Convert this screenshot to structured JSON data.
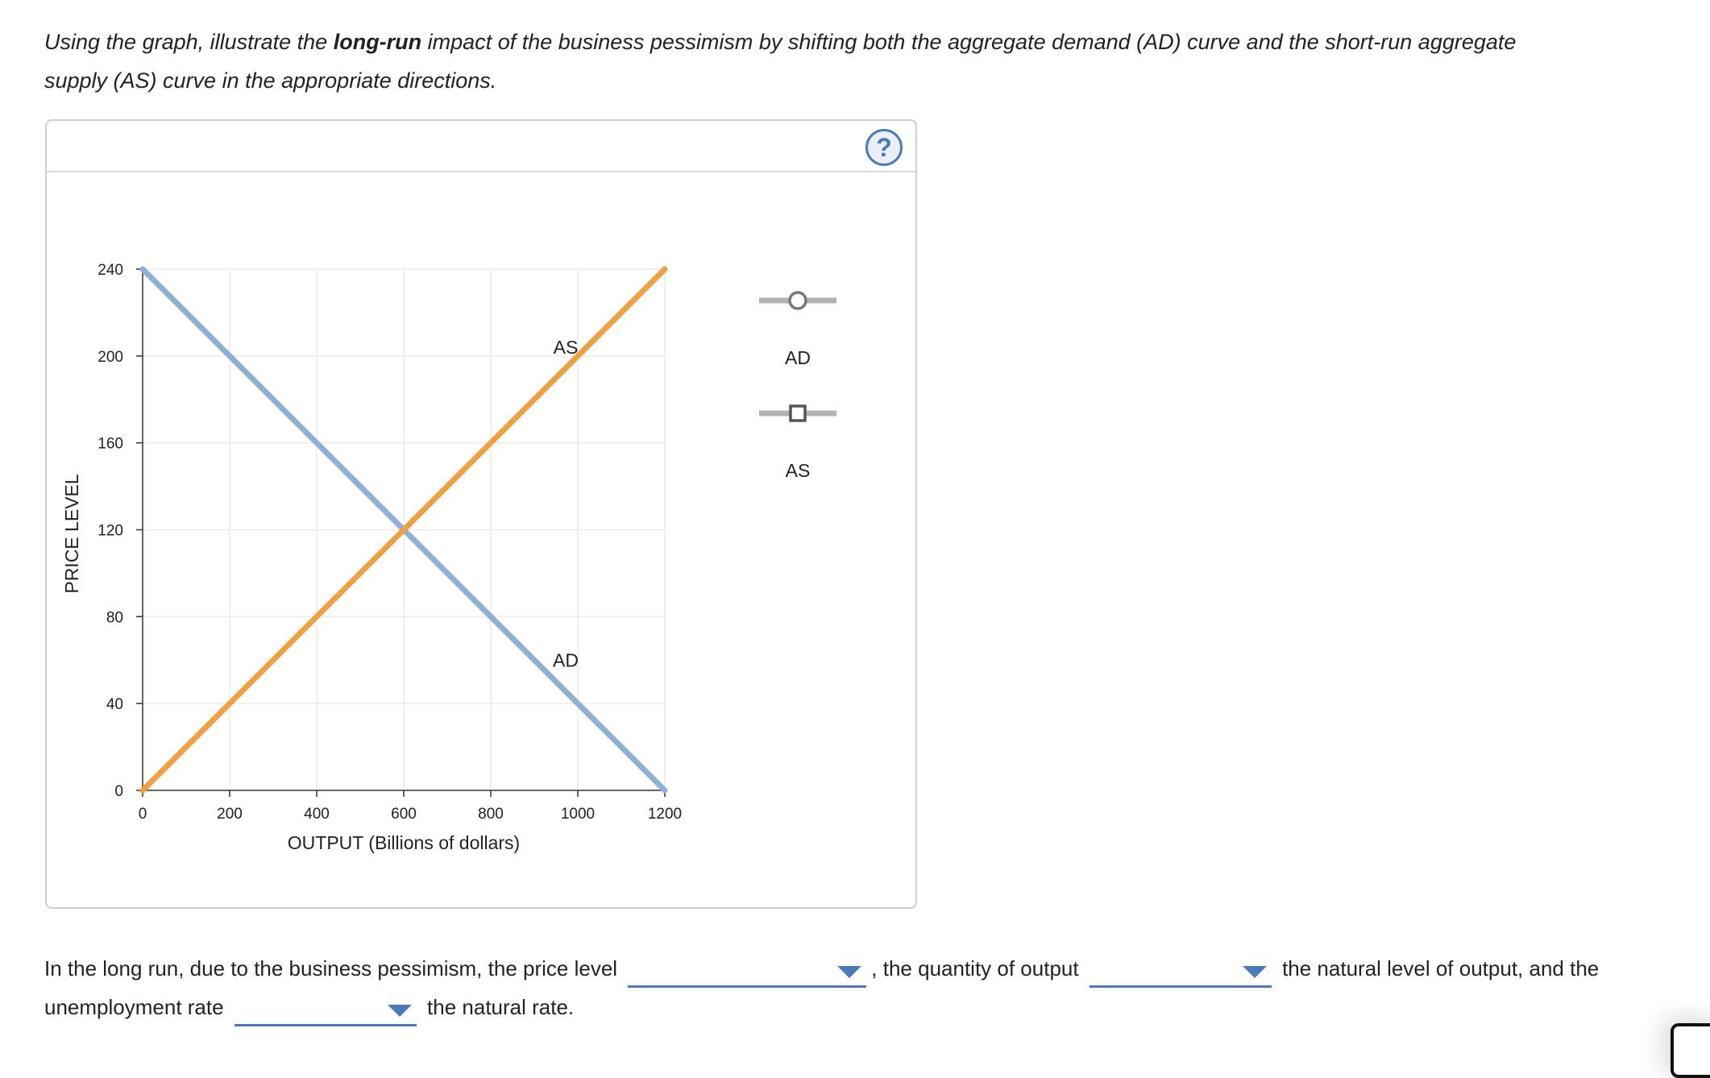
{
  "instructions": {
    "part1": "Using the graph, illustrate the ",
    "bold": "long-run",
    "part2": " impact of the business pessimism by shifting both the aggregate demand (AD) curve and the short-run aggregate supply (AS) curve in the appropriate directions."
  },
  "help_button": "?",
  "chart_data": {
    "type": "line",
    "xlabel": "OUTPUT (Billions of dollars)",
    "ylabel": "PRICE LEVEL",
    "xlim": [
      0,
      1200
    ],
    "ylim": [
      0,
      240
    ],
    "xticks": [
      0,
      200,
      400,
      600,
      800,
      1000,
      1200
    ],
    "yticks": [
      0,
      40,
      80,
      120,
      160,
      200,
      240
    ],
    "grid": true,
    "series": [
      {
        "name": "AD",
        "color": "#8fb0d6",
        "points": [
          [
            0,
            240
          ],
          [
            1200,
            0
          ]
        ],
        "label": "AD",
        "label_at": [
          950,
          60
        ]
      },
      {
        "name": "AS",
        "color": "#f0a040",
        "points": [
          [
            0,
            0
          ],
          [
            1200,
            240
          ]
        ],
        "label": "AS",
        "label_at": [
          950,
          204
        ]
      }
    ],
    "palette": [
      {
        "label": "AD",
        "marker": "circle",
        "icon": "ad-curve-tool-icon"
      },
      {
        "label": "AS",
        "marker": "square",
        "icon": "as-curve-tool-icon"
      }
    ]
  },
  "question": {
    "text1": "In the long run, due to the business pessimism, the price level",
    "text2": ", the quantity of output",
    "text3": "the natural level of output, and the unemployment rate",
    "text4": "the natural rate.",
    "dropdowns": [
      "",
      "",
      ""
    ]
  }
}
